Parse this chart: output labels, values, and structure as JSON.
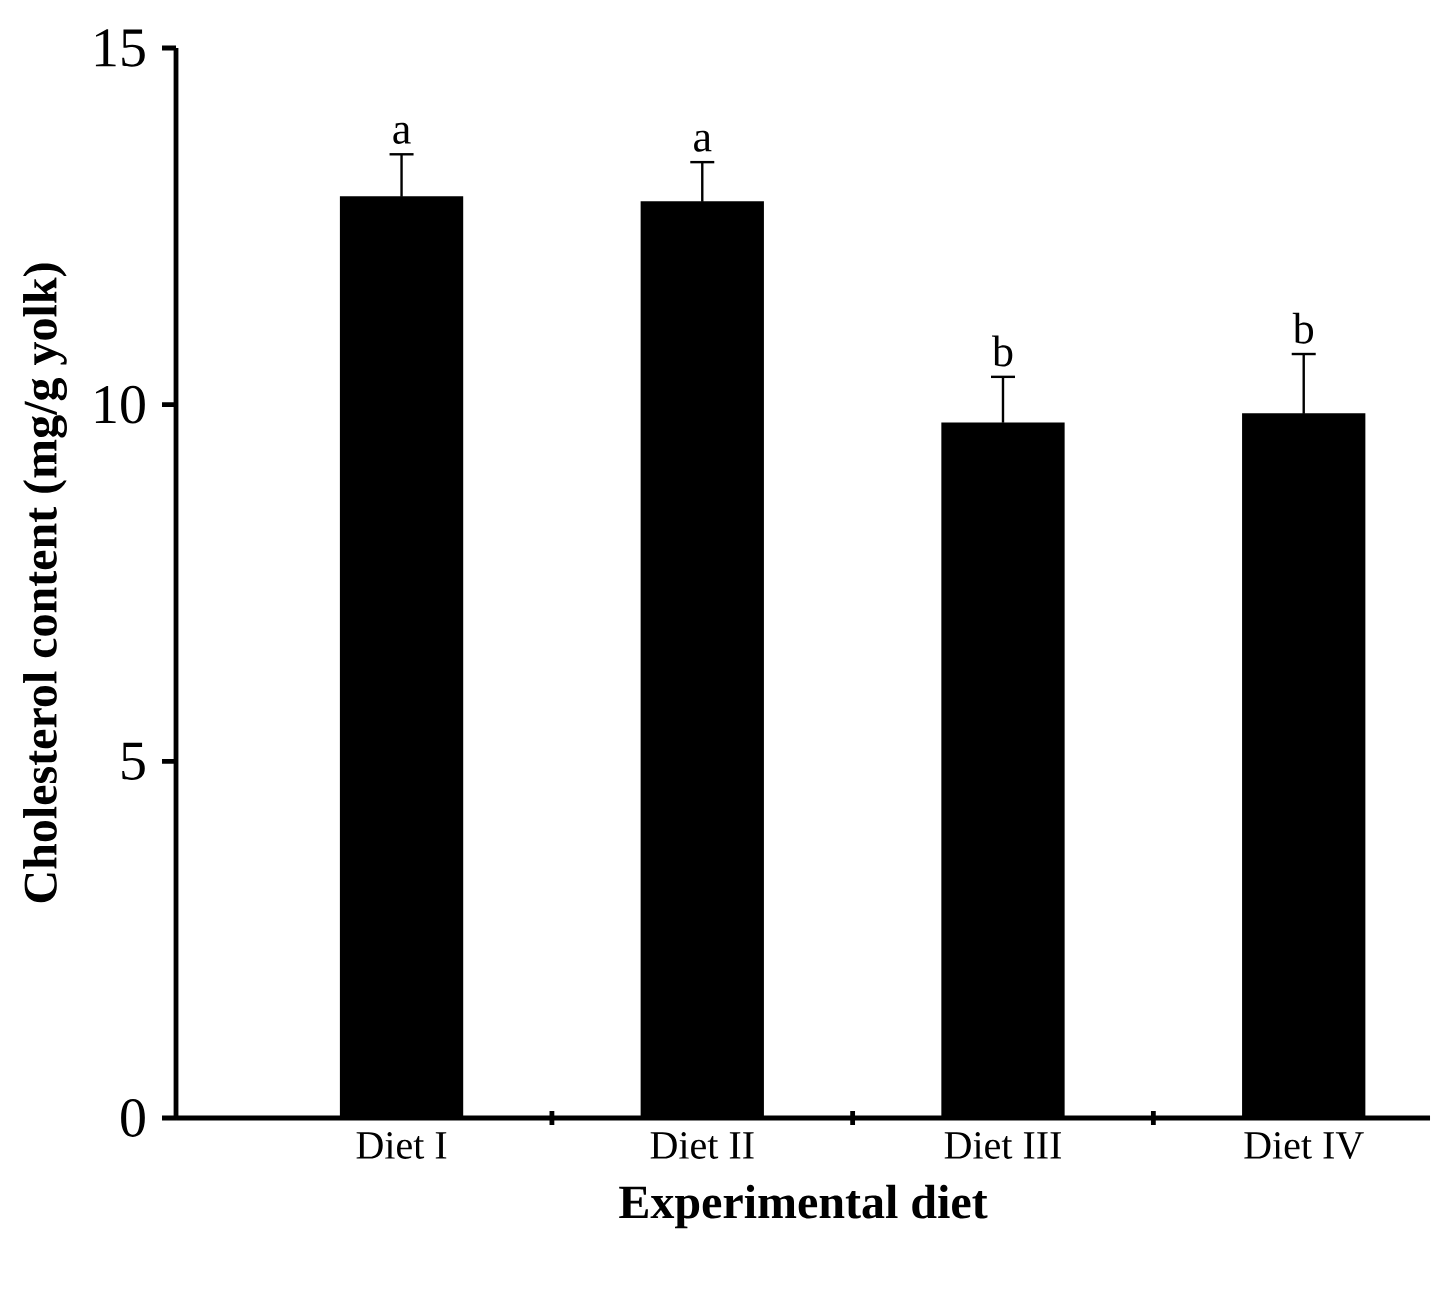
{
  "chart_data": {
    "type": "bar",
    "xlabel": "Experimental diet",
    "ylabel": "Cholesterol content (mg/g yolk)",
    "categories": [
      "Diet I",
      "Diet II",
      "Diet III",
      "Diet IV"
    ],
    "values": [
      12.92,
      12.85,
      9.75,
      9.88
    ],
    "errors": [
      0.59,
      0.55,
      0.64,
      0.83
    ],
    "color": "#000000",
    "ylim": [
      0,
      15
    ],
    "yticks": [
      0,
      5,
      10,
      15
    ],
    "grid": false,
    "annotations": [
      {
        "text": "a",
        "x": "Diet I",
        "y": 13.51
      },
      {
        "text": "a",
        "x": "Diet II",
        "y": 13.4
      },
      {
        "text": "b",
        "x": "Diet III",
        "y": 10.39
      },
      {
        "text": "b",
        "x": "Diet IV",
        "y": 10.71
      }
    ]
  }
}
